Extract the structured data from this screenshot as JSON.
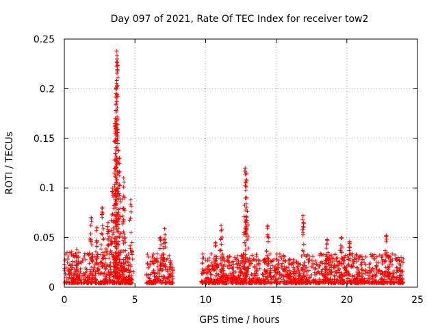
{
  "chart_data": {
    "type": "scatter",
    "title": "Day 097 of 2021, Rate Of TEC Index for receiver tow2",
    "xlabel": "GPS time / hours",
    "ylabel": "ROTI / TECUs",
    "xlim": [
      0,
      25
    ],
    "ylim": [
      0,
      0.25
    ],
    "x_ticks": [
      0,
      5,
      10,
      15,
      20,
      25
    ],
    "x_tick_labels": [
      "0",
      "5",
      "10",
      "15",
      "20",
      "25"
    ],
    "y_ticks": [
      0,
      0.05,
      0.1,
      0.15,
      0.2,
      0.25
    ],
    "y_tick_labels": [
      "0",
      "0.05",
      "0.1",
      "0.15",
      "0.2",
      "0.25"
    ],
    "grid": true,
    "marker": "+",
    "marker_color": "#ff0000",
    "series": [
      {
        "name": "ROTI",
        "segments": [
          {
            "x_range": [
              0.0,
              4.8
            ],
            "base_max": 0.035
          },
          {
            "x_range": [
              5.8,
              7.7
            ],
            "base_max": 0.03
          },
          {
            "x_range": [
              9.7,
              24.0
            ],
            "base_max": 0.03
          }
        ],
        "peaks": [
          {
            "x": 0.8,
            "y": 0.032
          },
          {
            "x": 1.9,
            "y": 0.07
          },
          {
            "x": 2.3,
            "y": 0.06
          },
          {
            "x": 2.7,
            "y": 0.08
          },
          {
            "x": 3.1,
            "y": 0.065
          },
          {
            "x": 3.4,
            "y": 0.1
          },
          {
            "x": 3.6,
            "y": 0.163
          },
          {
            "x": 3.65,
            "y": 0.2
          },
          {
            "x": 3.7,
            "y": 0.238
          },
          {
            "x": 3.75,
            "y": 0.227
          },
          {
            "x": 3.9,
            "y": 0.13
          },
          {
            "x": 4.2,
            "y": 0.11
          },
          {
            "x": 4.7,
            "y": 0.088
          },
          {
            "x": 6.8,
            "y": 0.05
          },
          {
            "x": 7.1,
            "y": 0.059
          },
          {
            "x": 10.7,
            "y": 0.045
          },
          {
            "x": 11.1,
            "y": 0.062
          },
          {
            "x": 12.8,
            "y": 0.12
          },
          {
            "x": 12.9,
            "y": 0.115
          },
          {
            "x": 14.4,
            "y": 0.062
          },
          {
            "x": 16.9,
            "y": 0.072
          },
          {
            "x": 18.6,
            "y": 0.048
          },
          {
            "x": 19.6,
            "y": 0.05
          },
          {
            "x": 20.2,
            "y": 0.046
          },
          {
            "x": 22.8,
            "y": 0.052
          }
        ]
      }
    ]
  }
}
